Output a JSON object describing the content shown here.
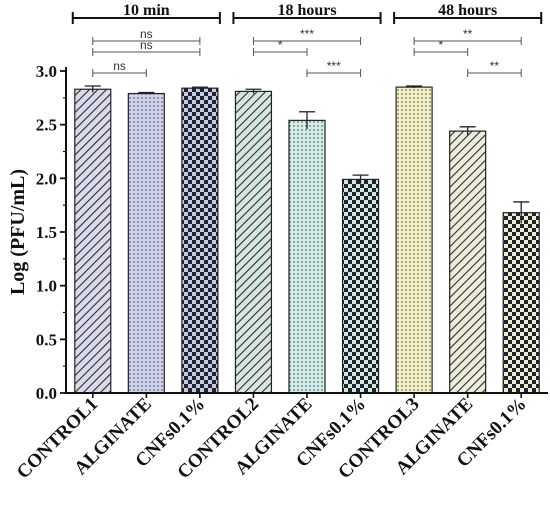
{
  "chart_data": {
    "type": "bar",
    "ylabel": "Log (PFU/mL)",
    "ylim": [
      0,
      3.0
    ],
    "yticks": [
      "0.0",
      "0.5",
      "1.0",
      "1.5",
      "2.0",
      "2.5",
      "3.0"
    ],
    "categories": [
      "CONTROL1",
      "ALGINATE",
      "CNFs0.1%",
      "CONTROL2",
      "ALGINATE",
      "CNFs0.1%",
      "CONTROL3",
      "ALGINATE",
      "CNFs0.1%"
    ],
    "values": [
      2.83,
      2.79,
      2.84,
      2.81,
      2.54,
      1.99,
      2.85,
      2.44,
      1.68
    ],
    "errors": [
      0.03,
      0.01,
      0.01,
      0.02,
      0.08,
      0.04,
      0.01,
      0.04,
      0.1
    ],
    "bar_colors": [
      "#d9dbe8",
      "#cfd4ee",
      "#c9cbe0",
      "#d6e6df",
      "#cfeeea",
      "#d2e8de",
      "#f6f1c4",
      "#ececd8",
      "#efeccb"
    ],
    "patterns": [
      "diag",
      "dots",
      "checker",
      "diag",
      "dots",
      "checker",
      "dots",
      "diag",
      "checker"
    ],
    "groups": [
      {
        "label": "10 min",
        "from": 0,
        "to": 2
      },
      {
        "label": "18 hours",
        "from": 3,
        "to": 5
      },
      {
        "label": "48 hours",
        "from": 6,
        "to": 8
      }
    ],
    "significance": [
      {
        "from": 0,
        "to": 2,
        "label": "ns",
        "level": 2
      },
      {
        "from": 0,
        "to": 2,
        "label": "ns",
        "level": 1
      },
      {
        "from": 0,
        "to": 1,
        "label": "ns",
        "level": 0
      },
      {
        "from": 3,
        "to": 5,
        "label": "***",
        "level": 2
      },
      {
        "from": 3,
        "to": 4,
        "label": "*",
        "level": 1
      },
      {
        "from": 4,
        "to": 5,
        "label": "***",
        "level": 0
      },
      {
        "from": 6,
        "to": 8,
        "label": "**",
        "level": 2
      },
      {
        "from": 6,
        "to": 7,
        "label": "*",
        "level": 1
      },
      {
        "from": 7,
        "to": 8,
        "label": "**",
        "level": 0
      }
    ]
  }
}
